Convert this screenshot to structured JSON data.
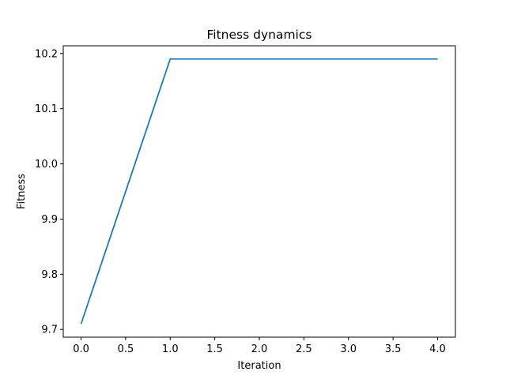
{
  "chart_data": {
    "type": "line",
    "title": "Fitness dynamics",
    "xlabel": "Iteration",
    "ylabel": "Fitness",
    "xlim": [
      -0.2,
      4.2
    ],
    "ylim": [
      9.686,
      10.214
    ],
    "xticks": [
      0.0,
      0.5,
      1.0,
      1.5,
      2.0,
      2.5,
      3.0,
      3.5,
      4.0
    ],
    "xtick_labels": [
      "0.0",
      "0.5",
      "1.0",
      "1.5",
      "2.0",
      "2.5",
      "3.0",
      "3.5",
      "4.0"
    ],
    "yticks": [
      9.7,
      9.8,
      9.9,
      10.0,
      10.1,
      10.2
    ],
    "ytick_labels": [
      "9.7",
      "9.8",
      "9.9",
      "10.0",
      "10.1",
      "10.2"
    ],
    "grid": false,
    "series": [
      {
        "x": [
          0,
          1,
          2,
          3,
          4
        ],
        "y": [
          9.71,
          10.19,
          10.19,
          10.19,
          10.19
        ],
        "color": "#1f77b4"
      }
    ]
  }
}
